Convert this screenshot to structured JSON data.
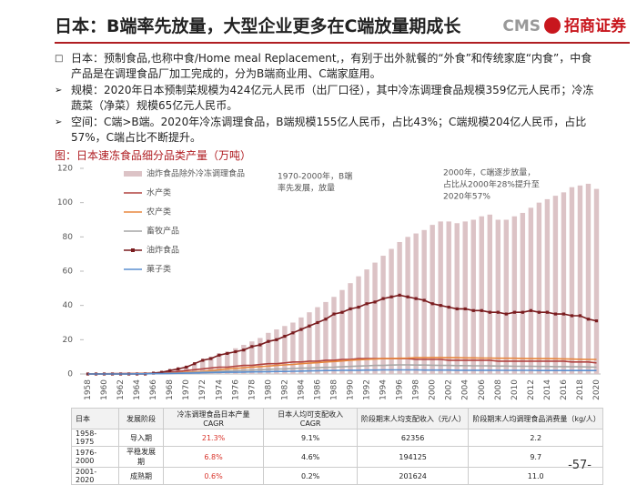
{
  "title": "日本：B端率先放量，大型企业更多在C端放量期成长",
  "logo": {
    "abbr": "CMS",
    "name": "招商证券"
  },
  "bullets": [
    {
      "marker": "□",
      "text": "日本：预制食品,也称中食/Home meal Replacement,，有别于出外就餐的“外食”和传统家庭“内食”，中食产品是在调理食品厂加工完成的，分为B端商业用、C端家庭用。"
    },
    {
      "marker": "➢",
      "text": "规模：2020年日本预制菜规模为424亿元人民币（出厂口径），其中冷冻调理食品规模359亿元人民币；冷冻蔬菜（净菜）规模65亿元人民币。"
    },
    {
      "marker": "➢",
      "text": "空间：C端>B端。2020年冷冻调理食品，B端规模155亿人民币，占比43%；C端规模204亿人民币，占比57%，C端占比不断提升。"
    }
  ],
  "chart_data": {
    "type": "bar",
    "title": "图：日本速冻食品细分品类产量（万吨）",
    "categories": [
      "1958",
      null,
      "1960",
      null,
      "1962",
      null,
      "1964",
      null,
      "1966",
      null,
      "1968",
      null,
      "1970",
      null,
      "1972",
      null,
      "1974",
      null,
      "1976",
      null,
      "1978",
      null,
      "1980",
      null,
      "1982",
      null,
      "1984",
      null,
      "1986",
      null,
      "1988",
      null,
      "1990",
      null,
      "1992",
      null,
      "1994",
      null,
      "1996",
      null,
      "1998",
      null,
      "2000",
      null,
      "2002",
      null,
      "2004",
      null,
      "2006",
      null,
      "2008",
      null,
      "2010",
      null,
      "2012",
      null,
      "2014",
      null,
      "2016",
      null,
      "2018",
      null,
      "2020"
    ],
    "ylim": [
      0,
      120
    ],
    "yticks": [
      0,
      20,
      40,
      60,
      80,
      100,
      120
    ],
    "series": [
      {
        "name": "油炸食品除外冷冻调理食品",
        "type": "bar",
        "color": "#dcc3c6",
        "values": [
          0.1,
          0.1,
          0.2,
          0.2,
          0.3,
          0.3,
          0.4,
          0.5,
          0.8,
          1.2,
          2,
          3,
          4.5,
          6,
          8,
          10,
          12,
          13,
          15,
          17,
          19,
          21,
          24,
          26,
          28,
          30,
          33,
          36,
          39,
          42,
          45,
          49,
          53,
          57,
          61,
          65,
          69,
          73,
          77,
          80,
          82,
          84,
          87,
          89,
          89,
          88,
          89,
          90,
          92,
          93,
          90,
          90,
          92,
          94,
          97,
          100,
          102,
          104,
          106,
          109,
          110,
          111,
          108
        ]
      },
      {
        "name": "水产类",
        "type": "line",
        "color": "#b0413e",
        "values": [
          0.1,
          0.1,
          0.1,
          0.2,
          0.2,
          0.3,
          0.3,
          0.4,
          0.5,
          0.7,
          1,
          1.5,
          2,
          2.5,
          3,
          3.5,
          4,
          4,
          4.5,
          5,
          5,
          5.5,
          6,
          6,
          6.5,
          7,
          7,
          7.5,
          7.5,
          8,
          8,
          8.5,
          8.5,
          9,
          9,
          9,
          9,
          9,
          9,
          9,
          8.5,
          8.5,
          8.5,
          8.5,
          8,
          8,
          8,
          8,
          8,
          8,
          7.5,
          7.5,
          7.5,
          7.5,
          7.5,
          7.5,
          7.5,
          7.5,
          7.5,
          7,
          7,
          7,
          6.5
        ]
      },
      {
        "name": "农产类",
        "type": "line",
        "color": "#e8873e",
        "values": [
          0,
          0,
          0,
          0,
          0.1,
          0.1,
          0.2,
          0.2,
          0.3,
          0.4,
          0.5,
          0.7,
          1,
          1.2,
          1.5,
          2,
          2.5,
          3,
          3.3,
          3.6,
          4,
          4.3,
          4.6,
          5,
          5.3,
          5.6,
          6,
          6.3,
          6.6,
          7,
          7.3,
          7.6,
          8,
          8.3,
          8.5,
          8.7,
          9,
          9,
          9.2,
          9.3,
          9.5,
          9.5,
          9.6,
          9.6,
          9.5,
          9.5,
          9.4,
          9.4,
          9.3,
          9.3,
          9.2,
          9.2,
          9.2,
          9.1,
          9,
          9,
          9,
          8.9,
          8.8,
          8.7,
          8.6,
          8.5,
          8.5
        ]
      },
      {
        "name": "畜牧产品",
        "type": "line",
        "color": "#a6a6a6",
        "values": [
          0,
          0,
          0,
          0,
          0,
          0.1,
          0.1,
          0.1,
          0.2,
          0.3,
          0.4,
          0.5,
          0.7,
          0.9,
          1.1,
          1.3,
          1.5,
          1.7,
          1.9,
          2.1,
          2.3,
          2.5,
          2.7,
          2.9,
          3,
          3.2,
          3.4,
          3.5,
          3.7,
          3.9,
          4,
          4.2,
          4.4,
          4.6,
          4.8,
          5,
          5,
          5.2,
          5.3,
          5.3,
          5.2,
          5.2,
          5.1,
          5,
          5,
          4.9,
          4.9,
          4.8,
          4.8,
          4.7,
          4.6,
          4.6,
          4.5,
          4.5,
          4.5,
          4.4,
          4.4,
          4.3,
          4.3,
          4.2,
          4.2,
          4.1,
          4
        ]
      },
      {
        "name": "油炸食品",
        "type": "line",
        "color": "#7a1c1f",
        "marker": true,
        "values": [
          0,
          0,
          0,
          0,
          0,
          0,
          0,
          0,
          0.5,
          1,
          2,
          3,
          4,
          6,
          8,
          9,
          11,
          12,
          13,
          14,
          16,
          17,
          19,
          20,
          22,
          24,
          26,
          28,
          30,
          32,
          35,
          36,
          38,
          39,
          41,
          42,
          44,
          45,
          46,
          45,
          44,
          43,
          41,
          40,
          39,
          38,
          38,
          37,
          37,
          36,
          36,
          35,
          36,
          36,
          37,
          36,
          36,
          35,
          35,
          34,
          34,
          32,
          31
        ]
      },
      {
        "name": "菓子类",
        "type": "line",
        "color": "#5b8fd0",
        "values": [
          0,
          0,
          0,
          0,
          0,
          0,
          0.1,
          0.1,
          0.2,
          0.2,
          0.3,
          0.4,
          0.5,
          0.6,
          0.7,
          0.8,
          0.9,
          1,
          1,
          1.1,
          1.2,
          1.3,
          1.4,
          1.5,
          1.5,
          1.6,
          1.7,
          1.8,
          1.9,
          2,
          2,
          2.1,
          2.2,
          2.2,
          2.3,
          2.3,
          2.4,
          2.4,
          2.4,
          2.4,
          2.4,
          2.3,
          2.3,
          2.3,
          2.3,
          2.2,
          2.2,
          2.2,
          2.2,
          2.2,
          2.1,
          2.1,
          2.1,
          2.1,
          2.1,
          2,
          2,
          2,
          2,
          2,
          2,
          2,
          2
        ]
      }
    ],
    "annotations": [
      {
        "lines": [
          "1970-2000年，B端",
          "率先发展，放量"
        ],
        "color": "#444444"
      },
      {
        "lines": [
          "2000年，C端逐步放量，",
          "占比从2000年28%提升至",
          "2020年57%"
        ],
        "color": "#d9342b"
      }
    ]
  },
  "table": {
    "header": [
      "日本",
      "发展阶段",
      "冷冻调理食品日本产量CAGR",
      "日本人均可支配收入CAGR",
      "阶段期末人均支配收入（元/人）",
      "阶段期末人均调理食品消费量（kg/人）"
    ],
    "rows": [
      [
        "1958-1975",
        "导入期",
        "21.3%",
        "9.1%",
        "62356",
        "2.2"
      ],
      [
        "1976-2000",
        "平稳发展期",
        "6.8%",
        "4.6%",
        "194125",
        "9.7"
      ],
      [
        "2001-2020",
        "成熟期",
        "0.6%",
        "0.2%",
        "201624",
        "11.0"
      ]
    ]
  },
  "page_number": "-57-"
}
